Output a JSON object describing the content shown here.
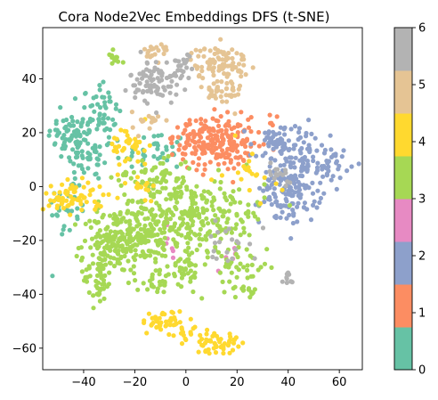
{
  "chart_data": {
    "type": "scatter",
    "title": "Cora Node2Vec Embeddings DFS (t-SNE)",
    "xlabel": "",
    "ylabel": "",
    "xlim": [
      -56,
      69
    ],
    "ylim": [
      -68,
      59
    ],
    "x_ticks": [
      -40,
      -20,
      0,
      20,
      40,
      60
    ],
    "y_ticks": [
      -60,
      -40,
      -20,
      0,
      20,
      40
    ],
    "grid": false,
    "colormap": "Set2",
    "colorbar": {
      "ticks": [
        0,
        1,
        2,
        3,
        4,
        5,
        6
      ],
      "colors": [
        "#66c2a5",
        "#fc8d62",
        "#8da0cb",
        "#e78ac3",
        "#a6d854",
        "#ffd92f",
        "#e5c494",
        "#b3b3b3"
      ]
    },
    "series": [
      {
        "values_note": "",
        "class": 0,
        "color": "#66c2a5",
        "clusters": [
          [
            -44,
            19,
            5,
            4,
            70
          ],
          [
            -33,
            27,
            4,
            5,
            40
          ],
          [
            -38,
            10,
            5,
            4,
            40
          ],
          [
            -46,
            -8,
            4,
            6,
            30
          ],
          [
            -12,
            13,
            6,
            4,
            35
          ],
          [
            -35,
            34,
            3,
            2,
            10
          ]
        ]
      },
      {
        "class": 1,
        "color": "#fc8d62",
        "clusters": [
          [
            12,
            16,
            7,
            5,
            180
          ],
          [
            3,
            19,
            4,
            3,
            30
          ],
          [
            27,
            20,
            4,
            3,
            15
          ]
        ]
      },
      {
        "class": 2,
        "color": "#8da0cb",
        "clusters": [
          [
            41,
            0,
            6,
            7,
            170
          ],
          [
            56,
            9,
            4,
            3,
            40
          ],
          [
            33,
            15,
            4,
            4,
            30
          ],
          [
            42,
            16,
            8,
            4,
            40
          ]
        ]
      },
      {
        "class": 3,
        "color": "#e78ac3",
        "clusters": [
          [
            -6,
            -20,
            3,
            4,
            8
          ],
          [
            18,
            -25,
            3,
            3,
            6
          ]
        ]
      },
      {
        "class": 4,
        "color": "#a6d854",
        "clusters": [
          [
            -28,
            -20,
            6,
            6,
            160
          ],
          [
            -34,
            -34,
            3,
            5,
            50
          ],
          [
            -15,
            -20,
            5,
            7,
            80
          ],
          [
            -3,
            -10,
            10,
            6,
            170
          ],
          [
            15,
            -10,
            8,
            7,
            100
          ],
          [
            20,
            -30,
            6,
            5,
            40
          ],
          [
            -28,
            48,
            1.5,
            1.5,
            12
          ],
          [
            -11,
            -36,
            4,
            2,
            25
          ],
          [
            25,
            -39,
            2,
            1,
            12
          ],
          [
            -13,
            4,
            8,
            4,
            60
          ],
          [
            0,
            -30,
            3,
            4,
            40
          ]
        ]
      },
      {
        "class": 5,
        "color": "#ffd92f",
        "clusters": [
          [
            -44,
            -4,
            6,
            3,
            70
          ],
          [
            -22,
            15,
            4,
            4,
            40
          ],
          [
            -9,
            -50,
            4,
            2,
            40
          ],
          [
            12,
            -58,
            4,
            2,
            50
          ],
          [
            0,
            -54,
            3,
            2,
            15
          ],
          [
            25,
            4,
            5,
            6,
            20
          ],
          [
            -18,
            2,
            3,
            3,
            15
          ]
        ]
      },
      {
        "class": 6,
        "color": "#e5c494",
        "clusters": [
          [
            13,
            46,
            6,
            3,
            90
          ],
          [
            14,
            35,
            4,
            3,
            40
          ],
          [
            -10,
            50,
            3,
            2,
            20
          ],
          [
            -15,
            24,
            3,
            2,
            15
          ]
        ]
      },
      {
        "class": 7,
        "color": "#b3b3b3",
        "clusters": [
          [
            -12,
            39,
            5,
            4,
            90
          ],
          [
            0,
            46,
            2,
            2,
            15
          ],
          [
            40,
            -34,
            1.2,
            1.2,
            10
          ],
          [
            18,
            -20,
            5,
            4,
            20
          ],
          [
            36,
            5,
            4,
            3,
            15
          ]
        ]
      }
    ]
  }
}
